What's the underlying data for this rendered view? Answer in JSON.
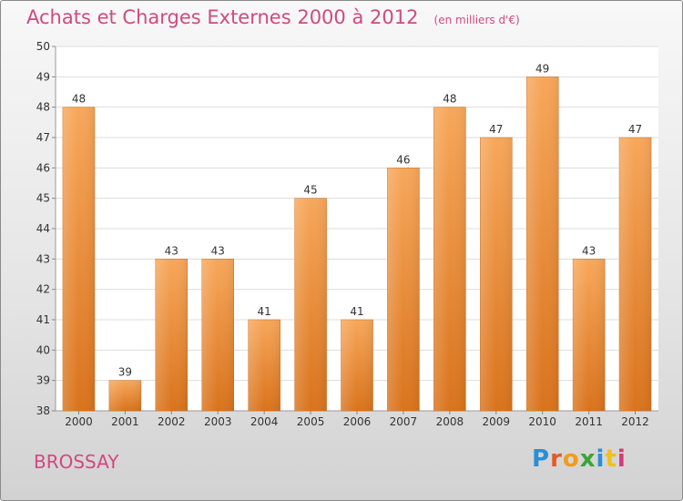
{
  "title": "Achats et Charges Externes 2000 à 2012",
  "unit": "(en milliers d'€)",
  "location": "BROSSAY",
  "logo": {
    "text": "Proxiti",
    "letter_colors": [
      "#2a8fd6",
      "#e65a25",
      "#f39b1b",
      "#3aa537",
      "#2a8fd6",
      "#f3bf1b",
      "#d33b7a"
    ]
  },
  "colors": {
    "bar_top": "#f7a75a",
    "bar_bottom": "#d9731c",
    "plot_bg": "#ffffff",
    "grid": "#dddddd",
    "text": "#333333",
    "accent": "#d14a7e"
  },
  "chart_data": {
    "type": "bar",
    "title": "Achats et Charges Externes 2000 à 2012",
    "subtitle": "(en milliers d'€)",
    "categories": [
      "2000",
      "2001",
      "2002",
      "2003",
      "2004",
      "2005",
      "2006",
      "2007",
      "2008",
      "2009",
      "2010",
      "2011",
      "2012"
    ],
    "values": [
      48,
      39,
      43,
      43,
      41,
      45,
      41,
      46,
      48,
      47,
      49,
      43,
      47
    ],
    "ylim": [
      38,
      50
    ],
    "yticks": [
      38,
      39,
      40,
      41,
      42,
      43,
      44,
      45,
      46,
      47,
      48,
      49,
      50
    ],
    "grid": true,
    "legend": "none"
  }
}
